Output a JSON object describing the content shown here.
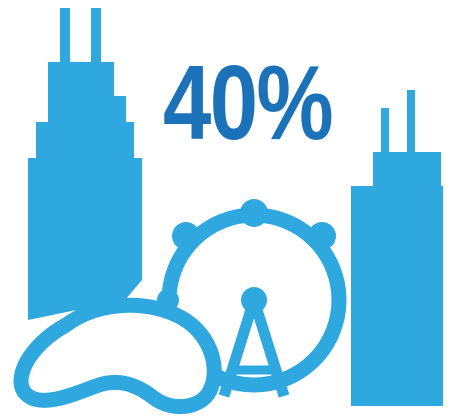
{
  "stat": {
    "value": "40%"
  },
  "colors": {
    "skyline": "#2fa7df",
    "stat_text": "#1b72b9",
    "background": "#ffffff"
  },
  "icons": [
    "skyscraper-left-icon",
    "skyscraper-right-icon",
    "ferris-wheel-icon",
    "cloud-gate-bean-icon"
  ]
}
